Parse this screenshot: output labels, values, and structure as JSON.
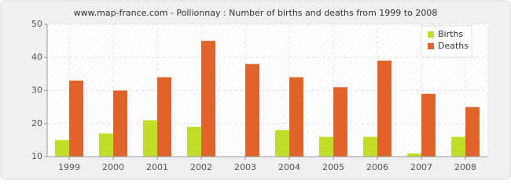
{
  "chart_data": {
    "type": "bar",
    "title": "www.map-france.com - Pollionnay : Number of births and deaths from 1999 to 2008",
    "categories": [
      "1999",
      "2000",
      "2001",
      "2002",
      "2003",
      "2004",
      "2005",
      "2006",
      "2007",
      "2008"
    ],
    "series": [
      {
        "name": "Births",
        "color": "#c0de28",
        "values": [
          15,
          17,
          21,
          19,
          10,
          18,
          16,
          16,
          11,
          16
        ]
      },
      {
        "name": "Deaths",
        "color": "#e0632b",
        "values": [
          33,
          30,
          34,
          45,
          38,
          34,
          31,
          39,
          29,
          25
        ]
      }
    ],
    "ylim": [
      10,
      50
    ],
    "yticks": [
      10,
      20,
      30,
      40,
      50
    ],
    "grid": true,
    "legend": "top-right"
  }
}
